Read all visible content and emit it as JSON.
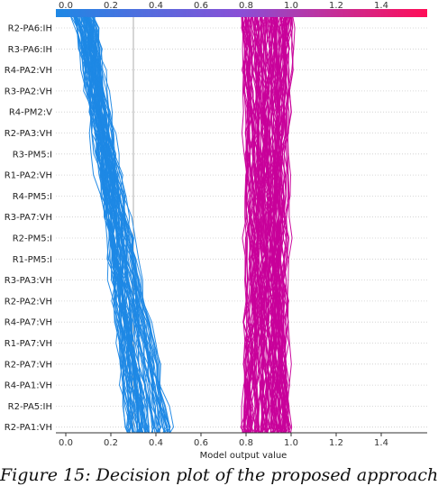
{
  "chart_data": {
    "type": "line",
    "colorbar": {
      "ticks": [
        "0.0",
        "0.2",
        "0.4",
        "0.6",
        "0.8",
        "1.0",
        "1.2",
        "1.4"
      ],
      "color_low": "#1e88e5",
      "color_high": "#ff0d57"
    },
    "features": [
      "R2-PA6:IH",
      "R3-PA6:IH",
      "R4-PA2:VH",
      "R3-PA2:VH",
      "R4-PM2:V",
      "R2-PA3:VH",
      "R3-PM5:I",
      "R1-PA2:VH",
      "R4-PM5:I",
      "R3-PA7:VH",
      "R2-PM5:I",
      "R1-PM5:I",
      "R3-PA3:VH",
      "R2-PA2:VH",
      "R4-PA7:VH",
      "R1-PA7:VH",
      "R2-PA7:VH",
      "R4-PA1:VH",
      "R2-PA5:IH",
      "R2-PA1:VH"
    ],
    "xlabel": "Model output value",
    "xlim": [
      -0.05,
      1.6
    ],
    "x_ticks": [
      "0.0",
      "0.2",
      "0.4",
      "0.6",
      "0.8",
      "1.0",
      "1.2",
      "1.4"
    ],
    "base_value": 0.3,
    "series": [
      {
        "group": "low",
        "color": "#1e88e5",
        "count": 75,
        "start_range": [
          0.02,
          0.13
        ],
        "end_range": [
          0.27,
          0.47
        ]
      },
      {
        "group": "high",
        "color": "#c8009a",
        "count": 110,
        "start_range": [
          0.78,
          1.01
        ],
        "end_range": [
          0.78,
          1.0
        ]
      }
    ]
  },
  "caption": "Figure 15: Decision plot of the proposed approach"
}
